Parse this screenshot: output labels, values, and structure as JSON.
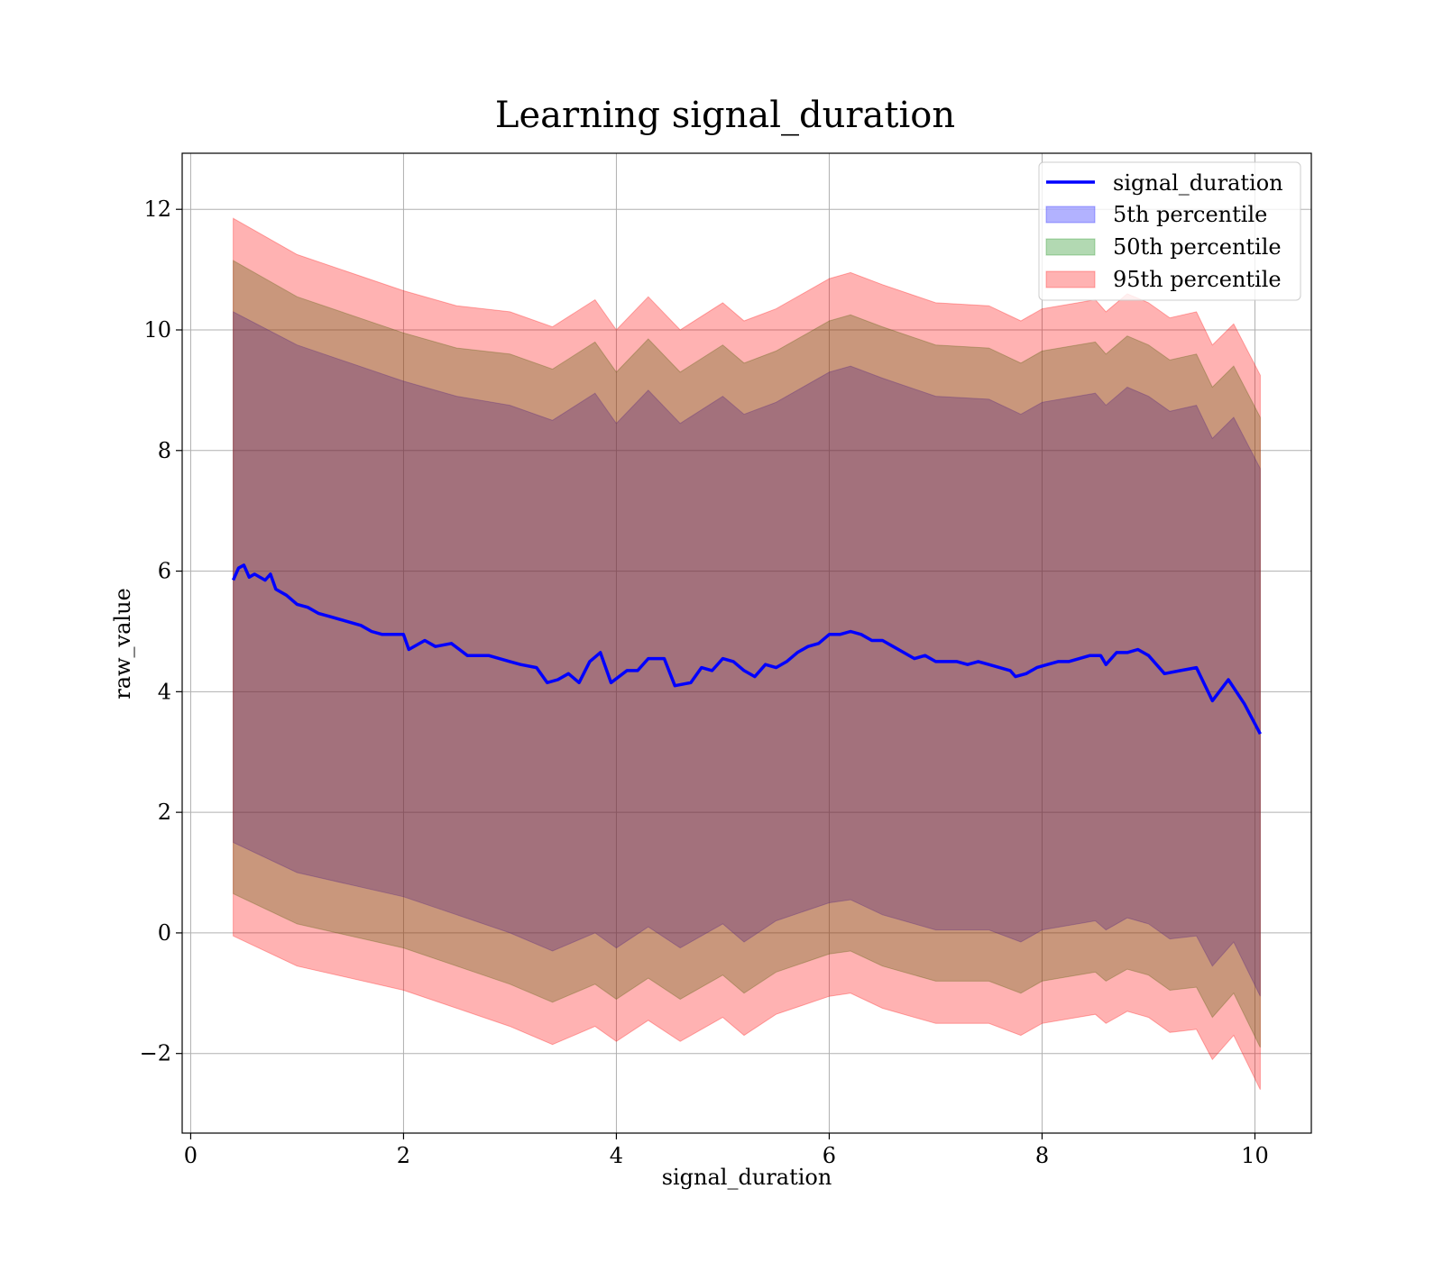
{
  "chart_data": {
    "type": "line",
    "title": "Learning signal_duration",
    "xlabel": "signal_duration",
    "ylabel": "raw_value",
    "xlim": [
      -0.08,
      10.53
    ],
    "ylim": [
      -3.32,
      12.93
    ],
    "xticks": [
      0,
      2,
      4,
      6,
      8,
      10
    ],
    "xtick_labels": [
      "0",
      "2",
      "4",
      "6",
      "8",
      "10"
    ],
    "yticks": [
      -2,
      0,
      2,
      4,
      6,
      8,
      10,
      12
    ],
    "ytick_labels": [
      "−2",
      "0",
      "2",
      "4",
      "6",
      "8",
      "10",
      "12"
    ],
    "grid": true,
    "legend_position": "top-right",
    "legend": [
      "signal_duration",
      "5th percentile",
      "50th percentile",
      "95th percentile"
    ],
    "line": {
      "name": "signal_duration",
      "color": "#0000ff",
      "points": [
        [
          0.4,
          5.85
        ],
        [
          0.45,
          6.05
        ],
        [
          0.5,
          6.1
        ],
        [
          0.55,
          5.9
        ],
        [
          0.6,
          5.95
        ],
        [
          0.7,
          5.85
        ],
        [
          0.75,
          5.95
        ],
        [
          0.8,
          5.7
        ],
        [
          0.9,
          5.6
        ],
        [
          1.0,
          5.45
        ],
        [
          1.1,
          5.4
        ],
        [
          1.2,
          5.3
        ],
        [
          1.3,
          5.25
        ],
        [
          1.4,
          5.2
        ],
        [
          1.5,
          5.15
        ],
        [
          1.6,
          5.1
        ],
        [
          1.7,
          5.0
        ],
        [
          1.8,
          4.95
        ],
        [
          1.9,
          4.95
        ],
        [
          2.0,
          4.95
        ],
        [
          2.05,
          4.7
        ],
        [
          2.2,
          4.85
        ],
        [
          2.3,
          4.75
        ],
        [
          2.45,
          4.8
        ],
        [
          2.6,
          4.6
        ],
        [
          2.8,
          4.6
        ],
        [
          3.0,
          4.5
        ],
        [
          3.1,
          4.45
        ],
        [
          3.25,
          4.4
        ],
        [
          3.35,
          4.15
        ],
        [
          3.45,
          4.2
        ],
        [
          3.55,
          4.3
        ],
        [
          3.65,
          4.15
        ],
        [
          3.75,
          4.5
        ],
        [
          3.85,
          4.65
        ],
        [
          3.95,
          4.15
        ],
        [
          4.1,
          4.35
        ],
        [
          4.2,
          4.35
        ],
        [
          4.3,
          4.55
        ],
        [
          4.45,
          4.55
        ],
        [
          4.55,
          4.1
        ],
        [
          4.7,
          4.15
        ],
        [
          4.8,
          4.4
        ],
        [
          4.9,
          4.35
        ],
        [
          5.0,
          4.55
        ],
        [
          5.1,
          4.5
        ],
        [
          5.2,
          4.35
        ],
        [
          5.3,
          4.25
        ],
        [
          5.4,
          4.45
        ],
        [
          5.5,
          4.4
        ],
        [
          5.6,
          4.5
        ],
        [
          5.7,
          4.65
        ],
        [
          5.8,
          4.75
        ],
        [
          5.9,
          4.8
        ],
        [
          6.0,
          4.95
        ],
        [
          6.1,
          4.95
        ],
        [
          6.2,
          5.0
        ],
        [
          6.3,
          4.95
        ],
        [
          6.4,
          4.85
        ],
        [
          6.5,
          4.85
        ],
        [
          6.6,
          4.75
        ],
        [
          6.7,
          4.65
        ],
        [
          6.8,
          4.55
        ],
        [
          6.9,
          4.6
        ],
        [
          7.0,
          4.5
        ],
        [
          7.1,
          4.5
        ],
        [
          7.2,
          4.5
        ],
        [
          7.3,
          4.45
        ],
        [
          7.4,
          4.5
        ],
        [
          7.5,
          4.45
        ],
        [
          7.6,
          4.4
        ],
        [
          7.7,
          4.35
        ],
        [
          7.75,
          4.25
        ],
        [
          7.85,
          4.3
        ],
        [
          7.95,
          4.4
        ],
        [
          8.05,
          4.45
        ],
        [
          8.15,
          4.5
        ],
        [
          8.25,
          4.5
        ],
        [
          8.35,
          4.55
        ],
        [
          8.45,
          4.6
        ],
        [
          8.55,
          4.6
        ],
        [
          8.6,
          4.45
        ],
        [
          8.7,
          4.65
        ],
        [
          8.8,
          4.65
        ],
        [
          8.9,
          4.7
        ],
        [
          9.0,
          4.6
        ],
        [
          9.15,
          4.3
        ],
        [
          9.3,
          4.35
        ],
        [
          9.45,
          4.4
        ],
        [
          9.6,
          3.85
        ],
        [
          9.75,
          4.2
        ],
        [
          9.9,
          3.8
        ],
        [
          10.05,
          3.3
        ]
      ]
    },
    "bands": [
      {
        "name": "5th percentile",
        "color": "#0000ff",
        "opacity": 0.3,
        "upper": [
          [
            0.4,
            10.3
          ],
          [
            1.0,
            9.75
          ],
          [
            2.0,
            9.15
          ],
          [
            2.5,
            8.9
          ],
          [
            3.0,
            8.75
          ],
          [
            3.4,
            8.5
          ],
          [
            3.8,
            8.95
          ],
          [
            4.0,
            8.45
          ],
          [
            4.3,
            9.0
          ],
          [
            4.6,
            8.45
          ],
          [
            5.0,
            8.9
          ],
          [
            5.2,
            8.6
          ],
          [
            5.5,
            8.8
          ],
          [
            6.0,
            9.3
          ],
          [
            6.2,
            9.4
          ],
          [
            6.5,
            9.2
          ],
          [
            7.0,
            8.9
          ],
          [
            7.5,
            8.85
          ],
          [
            7.8,
            8.6
          ],
          [
            8.0,
            8.8
          ],
          [
            8.5,
            8.95
          ],
          [
            8.6,
            8.75
          ],
          [
            8.8,
            9.05
          ],
          [
            9.0,
            8.9
          ],
          [
            9.2,
            8.65
          ],
          [
            9.45,
            8.75
          ],
          [
            9.6,
            8.2
          ],
          [
            9.8,
            8.55
          ],
          [
            10.05,
            7.7
          ]
        ],
        "lower": [
          [
            0.4,
            1.5
          ],
          [
            1.0,
            1.0
          ],
          [
            2.0,
            0.6
          ],
          [
            2.5,
            0.3
          ],
          [
            3.0,
            0.0
          ],
          [
            3.4,
            -0.3
          ],
          [
            3.8,
            0.0
          ],
          [
            4.0,
            -0.25
          ],
          [
            4.3,
            0.1
          ],
          [
            4.6,
            -0.25
          ],
          [
            5.0,
            0.15
          ],
          [
            5.2,
            -0.15
          ],
          [
            5.5,
            0.2
          ],
          [
            6.0,
            0.5
          ],
          [
            6.2,
            0.55
          ],
          [
            6.5,
            0.3
          ],
          [
            7.0,
            0.05
          ],
          [
            7.5,
            0.05
          ],
          [
            7.8,
            -0.15
          ],
          [
            8.0,
            0.05
          ],
          [
            8.5,
            0.2
          ],
          [
            8.6,
            0.05
          ],
          [
            8.8,
            0.25
          ],
          [
            9.0,
            0.15
          ],
          [
            9.2,
            -0.1
          ],
          [
            9.45,
            -0.05
          ],
          [
            9.6,
            -0.55
          ],
          [
            9.8,
            -0.15
          ],
          [
            10.05,
            -1.05
          ]
        ]
      },
      {
        "name": "50th percentile",
        "color": "#008000",
        "opacity": 0.3,
        "upper": [
          [
            0.4,
            11.15
          ],
          [
            1.0,
            10.55
          ],
          [
            2.0,
            9.95
          ],
          [
            2.5,
            9.7
          ],
          [
            3.0,
            9.6
          ],
          [
            3.4,
            9.35
          ],
          [
            3.8,
            9.8
          ],
          [
            4.0,
            9.3
          ],
          [
            4.3,
            9.85
          ],
          [
            4.6,
            9.3
          ],
          [
            5.0,
            9.75
          ],
          [
            5.2,
            9.45
          ],
          [
            5.5,
            9.65
          ],
          [
            6.0,
            10.15
          ],
          [
            6.2,
            10.25
          ],
          [
            6.5,
            10.05
          ],
          [
            7.0,
            9.75
          ],
          [
            7.5,
            9.7
          ],
          [
            7.8,
            9.45
          ],
          [
            8.0,
            9.65
          ],
          [
            8.5,
            9.8
          ],
          [
            8.6,
            9.6
          ],
          [
            8.8,
            9.9
          ],
          [
            9.0,
            9.75
          ],
          [
            9.2,
            9.5
          ],
          [
            9.45,
            9.6
          ],
          [
            9.6,
            9.05
          ],
          [
            9.8,
            9.4
          ],
          [
            10.05,
            8.55
          ]
        ],
        "lower": [
          [
            0.4,
            0.65
          ],
          [
            1.0,
            0.15
          ],
          [
            2.0,
            -0.25
          ],
          [
            2.5,
            -0.55
          ],
          [
            3.0,
            -0.85
          ],
          [
            3.4,
            -1.15
          ],
          [
            3.8,
            -0.85
          ],
          [
            4.0,
            -1.1
          ],
          [
            4.3,
            -0.75
          ],
          [
            4.6,
            -1.1
          ],
          [
            5.0,
            -0.7
          ],
          [
            5.2,
            -1.0
          ],
          [
            5.5,
            -0.65
          ],
          [
            6.0,
            -0.35
          ],
          [
            6.2,
            -0.3
          ],
          [
            6.5,
            -0.55
          ],
          [
            7.0,
            -0.8
          ],
          [
            7.5,
            -0.8
          ],
          [
            7.8,
            -1.0
          ],
          [
            8.0,
            -0.8
          ],
          [
            8.5,
            -0.65
          ],
          [
            8.6,
            -0.8
          ],
          [
            8.8,
            -0.6
          ],
          [
            9.0,
            -0.7
          ],
          [
            9.2,
            -0.95
          ],
          [
            9.45,
            -0.9
          ],
          [
            9.6,
            -1.4
          ],
          [
            9.8,
            -1.0
          ],
          [
            10.05,
            -1.9
          ]
        ]
      },
      {
        "name": "95th percentile",
        "color": "#ff0000",
        "opacity": 0.3,
        "upper": [
          [
            0.4,
            11.85
          ],
          [
            1.0,
            11.25
          ],
          [
            2.0,
            10.65
          ],
          [
            2.5,
            10.4
          ],
          [
            3.0,
            10.3
          ],
          [
            3.4,
            10.05
          ],
          [
            3.8,
            10.5
          ],
          [
            4.0,
            10.0
          ],
          [
            4.3,
            10.55
          ],
          [
            4.6,
            10.0
          ],
          [
            5.0,
            10.45
          ],
          [
            5.2,
            10.15
          ],
          [
            5.5,
            10.35
          ],
          [
            6.0,
            10.85
          ],
          [
            6.2,
            10.95
          ],
          [
            6.5,
            10.75
          ],
          [
            7.0,
            10.45
          ],
          [
            7.5,
            10.4
          ],
          [
            7.8,
            10.15
          ],
          [
            8.0,
            10.35
          ],
          [
            8.5,
            10.5
          ],
          [
            8.6,
            10.3
          ],
          [
            8.8,
            10.6
          ],
          [
            9.0,
            10.45
          ],
          [
            9.2,
            10.2
          ],
          [
            9.45,
            10.3
          ],
          [
            9.6,
            9.75
          ],
          [
            9.8,
            10.1
          ],
          [
            10.05,
            9.25
          ]
        ],
        "lower": [
          [
            0.4,
            -0.05
          ],
          [
            1.0,
            -0.55
          ],
          [
            2.0,
            -0.95
          ],
          [
            2.5,
            -1.25
          ],
          [
            3.0,
            -1.55
          ],
          [
            3.4,
            -1.85
          ],
          [
            3.8,
            -1.55
          ],
          [
            4.0,
            -1.8
          ],
          [
            4.3,
            -1.45
          ],
          [
            4.6,
            -1.8
          ],
          [
            5.0,
            -1.4
          ],
          [
            5.2,
            -1.7
          ],
          [
            5.5,
            -1.35
          ],
          [
            6.0,
            -1.05
          ],
          [
            6.2,
            -1.0
          ],
          [
            6.5,
            -1.25
          ],
          [
            7.0,
            -1.5
          ],
          [
            7.5,
            -1.5
          ],
          [
            7.8,
            -1.7
          ],
          [
            8.0,
            -1.5
          ],
          [
            8.5,
            -1.35
          ],
          [
            8.6,
            -1.5
          ],
          [
            8.8,
            -1.3
          ],
          [
            9.0,
            -1.4
          ],
          [
            9.2,
            -1.65
          ],
          [
            9.45,
            -1.6
          ],
          [
            9.6,
            -2.1
          ],
          [
            9.8,
            -1.7
          ],
          [
            10.05,
            -2.6
          ]
        ]
      }
    ]
  }
}
